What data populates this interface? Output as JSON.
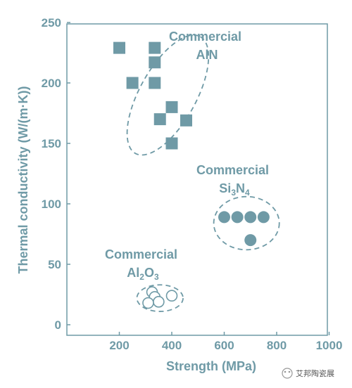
{
  "chart_data": {
    "type": "scatter",
    "xlabel": "Strength (MPa)",
    "ylabel": "Thermal conductivity (W/(m·K))",
    "xlim": [
      0,
      1000
    ],
    "ylim": [
      0,
      250
    ],
    "xticks": [
      200,
      400,
      600,
      800,
      1000
    ],
    "yticks": [
      0,
      50,
      100,
      150,
      200,
      250
    ],
    "grid": false,
    "colors": {
      "marker": "#6f9aa6",
      "axis": "#6f9aa6",
      "text": "#6f9aa6"
    },
    "series": [
      {
        "marker": "filled-square",
        "points": [
          [
            200,
            229
          ],
          [
            335,
            229
          ],
          [
            335,
            217
          ],
          [
            250,
            200
          ],
          [
            335,
            200
          ],
          [
            400,
            180
          ],
          [
            355,
            170
          ],
          [
            455,
            169
          ],
          [
            400,
            150
          ]
        ]
      },
      {
        "marker": "filled-circle",
        "points": [
          [
            600,
            89
          ],
          [
            650,
            89
          ],
          [
            700,
            89
          ],
          [
            750,
            89
          ],
          [
            700,
            70
          ]
        ]
      },
      {
        "marker": "open-circle",
        "points": [
          [
            325,
            27
          ],
          [
            335,
            23
          ],
          [
            350,
            19
          ],
          [
            310,
            18
          ],
          [
            400,
            24
          ]
        ]
      }
    ],
    "groups": [
      {
        "label_lines": [
          "Commercial",
          "AlN"
        ],
        "center": [
          385,
          190
        ],
        "radius": [
          205,
          45
        ]
      },
      {
        "label_lines": [
          "Commercial",
          "Si3N4"
        ],
        "center": [
          685,
          84
        ],
        "radius": [
          125,
          22
        ]
      },
      {
        "label_lines": [
          "Commercial",
          "Al2O3"
        ],
        "center": [
          355,
          22
        ],
        "radius": [
          88,
          11
        ]
      }
    ]
  },
  "watermark": {
    "text": "艾邦陶瓷展"
  }
}
